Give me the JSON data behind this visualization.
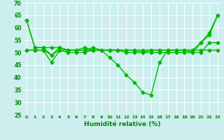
{
  "line1": [
    63,
    52,
    52,
    49,
    52,
    51,
    51,
    52,
    51,
    51,
    48,
    45,
    41,
    38,
    34,
    33,
    46,
    51,
    51,
    51,
    50,
    54,
    57,
    65
  ],
  "line2": [
    63,
    52,
    52,
    52,
    52,
    51,
    51,
    51,
    52,
    51,
    51,
    51,
    51,
    51,
    50,
    51,
    51,
    51,
    51,
    51,
    51,
    54,
    58,
    65
  ],
  "line3": [
    51,
    51,
    51,
    49,
    51,
    51,
    51,
    51,
    51,
    51,
    51,
    51,
    51,
    51,
    51,
    51,
    51,
    51,
    51,
    51,
    51,
    51,
    51,
    51
  ],
  "line4": [
    51,
    51,
    51,
    46,
    51,
    50,
    50,
    50,
    51,
    51,
    51,
    51,
    50,
    50,
    50,
    50,
    50,
    50,
    50,
    50,
    50,
    50,
    54,
    54
  ],
  "x": [
    0,
    1,
    2,
    3,
    4,
    5,
    6,
    7,
    8,
    9,
    10,
    11,
    12,
    13,
    14,
    15,
    16,
    17,
    18,
    19,
    20,
    21,
    22,
    23
  ],
  "xlim": [
    -0.5,
    23.5
  ],
  "ylim": [
    25,
    70
  ],
  "yticks": [
    25,
    30,
    35,
    40,
    45,
    50,
    55,
    60,
    65,
    70
  ],
  "xtick_labels": [
    "0",
    "1",
    "2",
    "3",
    "4",
    "5",
    "6",
    "7",
    "8",
    "9",
    "10",
    "11",
    "12",
    "13",
    "14",
    "15",
    "16",
    "17",
    "18",
    "19",
    "20",
    "21",
    "22",
    "23"
  ],
  "xlabel": "Humidité relative (%)",
  "line_color": "#00bb00",
  "bg_color": "#cceeee",
  "grid_color": "#aaddcc",
  "tick_color": "#008800",
  "marker": "D",
  "markersize": 2.5,
  "linewidth": 1.0
}
